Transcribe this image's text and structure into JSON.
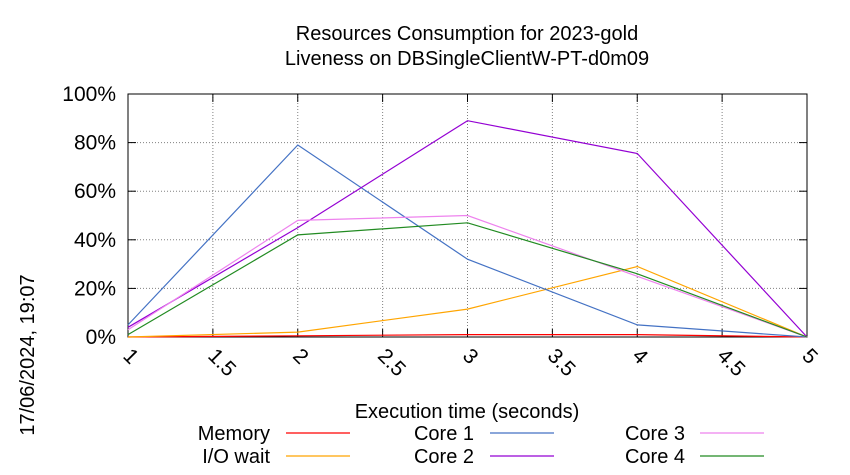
{
  "chart_data": {
    "type": "line",
    "title": [
      "Resources Consumption for 2023-gold",
      "Liveness on DBSingleClientW-PT-d0m09"
    ],
    "xlabel": "Execution time (seconds)",
    "ylabel": "",
    "xlim": [
      1,
      5
    ],
    "ylim": [
      0,
      100
    ],
    "x_ticks": [
      "1",
      "1.5",
      "2",
      "2.5",
      "3",
      "3.5",
      "4",
      "4.5",
      "5"
    ],
    "y_ticks": [
      "0%",
      "20%",
      "40%",
      "60%",
      "80%",
      "100%"
    ],
    "grid": true,
    "legend_position": "bottom",
    "series": [
      {
        "name": "Memory",
        "color": "#ff0000",
        "x": [
          1,
          2,
          3,
          4,
          5
        ],
        "y": [
          0,
          0.5,
          1,
          1,
          0
        ]
      },
      {
        "name": "I/O wait",
        "color": "#ffa500",
        "x": [
          1,
          2,
          3,
          4,
          5
        ],
        "y": [
          0,
          2,
          11.5,
          29,
          0
        ]
      },
      {
        "name": "Core 1",
        "color": "#4472c4",
        "x": [
          1,
          2,
          3,
          4,
          5
        ],
        "y": [
          5,
          79,
          32,
          5,
          0
        ]
      },
      {
        "name": "Core 2",
        "color": "#9400d3",
        "x": [
          1,
          2,
          3,
          4,
          5
        ],
        "y": [
          4,
          45,
          89,
          75.5,
          0
        ]
      },
      {
        "name": "Core 3",
        "color": "#ee82ee",
        "x": [
          1,
          2,
          3,
          4,
          5
        ],
        "y": [
          3,
          48,
          50,
          25,
          0
        ]
      },
      {
        "name": "Core 4",
        "color": "#228b22",
        "x": [
          1,
          2,
          3,
          4,
          5
        ],
        "y": [
          1,
          42,
          47,
          26,
          0
        ]
      }
    ]
  },
  "timestamp": "17/06/2024, 19:07"
}
